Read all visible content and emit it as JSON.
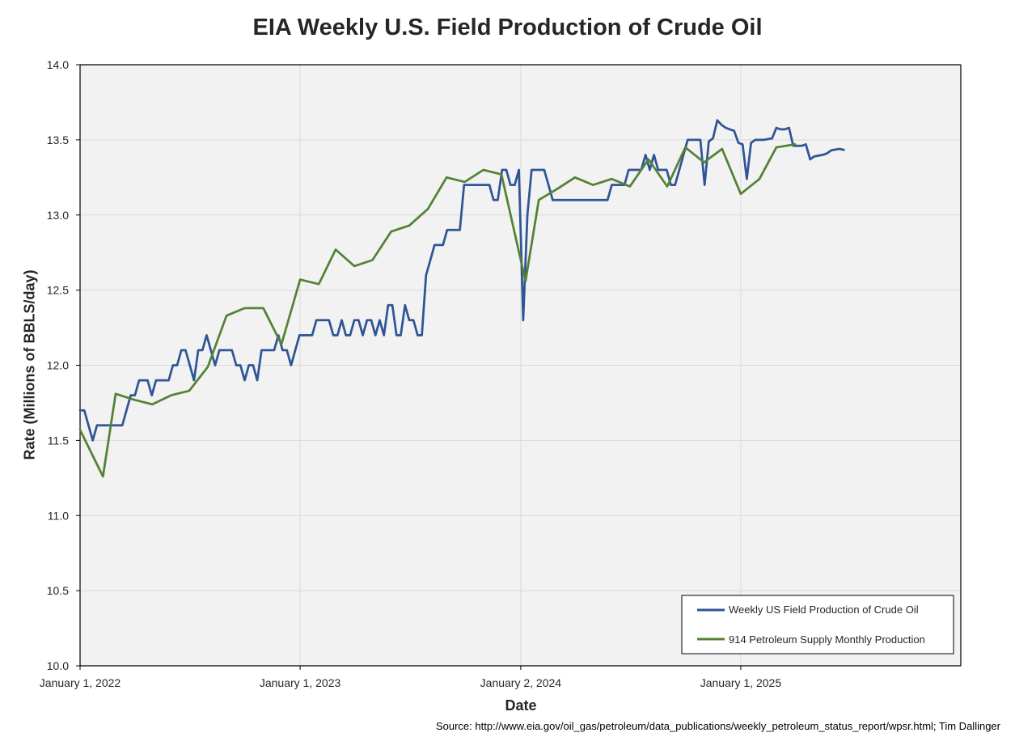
{
  "chart_data": {
    "type": "line",
    "title": "EIA Weekly U.S. Field Production of Crude Oil",
    "xlabel": "Date",
    "ylabel": "Rate (Millions of BBLS/day)",
    "xlim": [
      "2022-01-01",
      "2026-01-01"
    ],
    "ylim": [
      10.0,
      14.0
    ],
    "y_ticks": [
      "10.0",
      "10.5",
      "11.0",
      "11.5",
      "12.0",
      "12.5",
      "13.0",
      "13.5",
      "14.0"
    ],
    "x_ticks": [
      {
        "date": "2022-01-01",
        "label": "January 1, 2022"
      },
      {
        "date": "2023-01-01",
        "label": "January 1, 2023"
      },
      {
        "date": "2024-01-02",
        "label": "January 2, 2024"
      },
      {
        "date": "2025-01-01",
        "label": "January 1, 2025"
      }
    ],
    "grid": true,
    "legend_position": "bottom-right",
    "series": [
      {
        "name": "Weekly US Field Production of Crude Oil",
        "color": "#2f5597",
        "points": [
          [
            "2022-01-01",
            11.7
          ],
          [
            "2022-01-08",
            11.7
          ],
          [
            "2022-01-15",
            11.6
          ],
          [
            "2022-01-22",
            11.5
          ],
          [
            "2022-01-29",
            11.6
          ],
          [
            "2022-02-05",
            11.6
          ],
          [
            "2022-02-12",
            11.6
          ],
          [
            "2022-02-19",
            11.6
          ],
          [
            "2022-02-26",
            11.6
          ],
          [
            "2022-03-05",
            11.6
          ],
          [
            "2022-03-12",
            11.6
          ],
          [
            "2022-03-19",
            11.7
          ],
          [
            "2022-03-26",
            11.8
          ],
          [
            "2022-04-02",
            11.8
          ],
          [
            "2022-04-09",
            11.9
          ],
          [
            "2022-04-16",
            11.9
          ],
          [
            "2022-04-23",
            11.9
          ],
          [
            "2022-04-30",
            11.8
          ],
          [
            "2022-05-07",
            11.9
          ],
          [
            "2022-05-14",
            11.9
          ],
          [
            "2022-05-21",
            11.9
          ],
          [
            "2022-05-28",
            11.9
          ],
          [
            "2022-06-04",
            12.0
          ],
          [
            "2022-06-11",
            12.0
          ],
          [
            "2022-06-18",
            12.1
          ],
          [
            "2022-06-25",
            12.1
          ],
          [
            "2022-07-02",
            12.0
          ],
          [
            "2022-07-09",
            11.9
          ],
          [
            "2022-07-16",
            12.1
          ],
          [
            "2022-07-23",
            12.1
          ],
          [
            "2022-07-30",
            12.2
          ],
          [
            "2022-08-06",
            12.1
          ],
          [
            "2022-08-13",
            12.0
          ],
          [
            "2022-08-20",
            12.1
          ],
          [
            "2022-08-27",
            12.1
          ],
          [
            "2022-09-03",
            12.1
          ],
          [
            "2022-09-10",
            12.1
          ],
          [
            "2022-09-17",
            12.0
          ],
          [
            "2022-09-24",
            12.0
          ],
          [
            "2022-10-01",
            11.9
          ],
          [
            "2022-10-08",
            12.0
          ],
          [
            "2022-10-15",
            12.0
          ],
          [
            "2022-10-22",
            11.9
          ],
          [
            "2022-10-29",
            12.1
          ],
          [
            "2022-11-05",
            12.1
          ],
          [
            "2022-11-12",
            12.1
          ],
          [
            "2022-11-19",
            12.1
          ],
          [
            "2022-11-26",
            12.2
          ],
          [
            "2022-12-03",
            12.1
          ],
          [
            "2022-12-10",
            12.1
          ],
          [
            "2022-12-17",
            12.0
          ],
          [
            "2022-12-24",
            12.1
          ],
          [
            "2022-12-31",
            12.2
          ],
          [
            "2023-01-07",
            12.2
          ],
          [
            "2023-01-14",
            12.2
          ],
          [
            "2023-01-21",
            12.2
          ],
          [
            "2023-01-28",
            12.3
          ],
          [
            "2023-02-04",
            12.3
          ],
          [
            "2023-02-11",
            12.3
          ],
          [
            "2023-02-18",
            12.3
          ],
          [
            "2023-02-25",
            12.2
          ],
          [
            "2023-03-04",
            12.2
          ],
          [
            "2023-03-11",
            12.3
          ],
          [
            "2023-03-18",
            12.2
          ],
          [
            "2023-03-25",
            12.2
          ],
          [
            "2023-04-01",
            12.3
          ],
          [
            "2023-04-08",
            12.3
          ],
          [
            "2023-04-15",
            12.2
          ],
          [
            "2023-04-22",
            12.3
          ],
          [
            "2023-04-29",
            12.3
          ],
          [
            "2023-05-06",
            12.2
          ],
          [
            "2023-05-13",
            12.3
          ],
          [
            "2023-05-20",
            12.2
          ],
          [
            "2023-05-27",
            12.4
          ],
          [
            "2023-06-03",
            12.4
          ],
          [
            "2023-06-10",
            12.2
          ],
          [
            "2023-06-17",
            12.2
          ],
          [
            "2023-06-24",
            12.4
          ],
          [
            "2023-07-01",
            12.3
          ],
          [
            "2023-07-08",
            12.3
          ],
          [
            "2023-07-15",
            12.2
          ],
          [
            "2023-07-22",
            12.2
          ],
          [
            "2023-07-29",
            12.6
          ],
          [
            "2023-08-05",
            12.7
          ],
          [
            "2023-08-12",
            12.8
          ],
          [
            "2023-08-19",
            12.8
          ],
          [
            "2023-08-26",
            12.8
          ],
          [
            "2023-09-02",
            12.9
          ],
          [
            "2023-09-09",
            12.9
          ],
          [
            "2023-09-16",
            12.9
          ],
          [
            "2023-09-23",
            12.9
          ],
          [
            "2023-09-30",
            13.2
          ],
          [
            "2023-10-07",
            13.2
          ],
          [
            "2023-10-14",
            13.2
          ],
          [
            "2023-10-21",
            13.2
          ],
          [
            "2023-10-28",
            13.2
          ],
          [
            "2023-11-04",
            13.2
          ],
          [
            "2023-11-11",
            13.2
          ],
          [
            "2023-11-18",
            13.1
          ],
          [
            "2023-11-25",
            13.1
          ],
          [
            "2023-12-02",
            13.3
          ],
          [
            "2023-12-09",
            13.3
          ],
          [
            "2023-12-16",
            13.2
          ],
          [
            "2023-12-23",
            13.2
          ],
          [
            "2023-12-30",
            13.3
          ],
          [
            "2024-01-06",
            12.3
          ],
          [
            "2024-01-13",
            13.0
          ],
          [
            "2024-01-20",
            13.3
          ],
          [
            "2024-01-27",
            13.3
          ],
          [
            "2024-02-03",
            13.3
          ],
          [
            "2024-02-10",
            13.3
          ],
          [
            "2024-02-17",
            13.2
          ],
          [
            "2024-02-24",
            13.1
          ],
          [
            "2024-03-02",
            13.1
          ],
          [
            "2024-03-09",
            13.1
          ],
          [
            "2024-03-16",
            13.1
          ],
          [
            "2024-03-23",
            13.1
          ],
          [
            "2024-03-30",
            13.1
          ],
          [
            "2024-04-06",
            13.1
          ],
          [
            "2024-04-13",
            13.1
          ],
          [
            "2024-04-20",
            13.1
          ],
          [
            "2024-04-27",
            13.1
          ],
          [
            "2024-05-04",
            13.1
          ],
          [
            "2024-05-11",
            13.1
          ],
          [
            "2024-05-18",
            13.1
          ],
          [
            "2024-05-25",
            13.1
          ],
          [
            "2024-06-01",
            13.2
          ],
          [
            "2024-06-08",
            13.2
          ],
          [
            "2024-06-15",
            13.2
          ],
          [
            "2024-06-22",
            13.2
          ],
          [
            "2024-06-29",
            13.3
          ],
          [
            "2024-07-06",
            13.3
          ],
          [
            "2024-07-13",
            13.3
          ],
          [
            "2024-07-20",
            13.3
          ],
          [
            "2024-07-27",
            13.4
          ],
          [
            "2024-08-03",
            13.3
          ],
          [
            "2024-08-10",
            13.4
          ],
          [
            "2024-08-17",
            13.3
          ],
          [
            "2024-08-24",
            13.3
          ],
          [
            "2024-08-31",
            13.3
          ],
          [
            "2024-09-07",
            13.2
          ],
          [
            "2024-09-14",
            13.2
          ],
          [
            "2024-09-21",
            13.3
          ],
          [
            "2024-09-28",
            13.4
          ],
          [
            "2024-10-05",
            13.5
          ],
          [
            "2024-10-12",
            13.5
          ],
          [
            "2024-10-19",
            13.5
          ],
          [
            "2024-10-26",
            13.5
          ],
          [
            "2024-11-02",
            13.2
          ],
          [
            "2024-11-09",
            13.49
          ],
          [
            "2024-11-16",
            13.51
          ],
          [
            "2024-11-23",
            13.63
          ],
          [
            "2024-11-30",
            13.6
          ],
          [
            "2024-12-07",
            13.58
          ],
          [
            "2024-12-14",
            13.57
          ],
          [
            "2024-12-21",
            13.56
          ],
          [
            "2024-12-28",
            13.48
          ],
          [
            "2025-01-04",
            13.47
          ],
          [
            "2025-01-11",
            13.24
          ],
          [
            "2025-01-18",
            13.48
          ],
          [
            "2025-01-25",
            13.5
          ],
          [
            "2025-02-01",
            13.5
          ],
          [
            "2025-02-08",
            13.5
          ],
          [
            "2025-02-15",
            13.505
          ],
          [
            "2025-02-22",
            13.51
          ],
          [
            "2025-03-01",
            13.58
          ],
          [
            "2025-03-08",
            13.57
          ],
          [
            "2025-03-15",
            13.57
          ],
          [
            "2025-03-22",
            13.58
          ],
          [
            "2025-03-29",
            13.46
          ],
          [
            "2025-04-05",
            13.46
          ],
          [
            "2025-04-12",
            13.46
          ],
          [
            "2025-04-19",
            13.47
          ],
          [
            "2025-04-26",
            13.37
          ],
          [
            "2025-05-03",
            13.39
          ],
          [
            "2025-05-10",
            13.395
          ],
          [
            "2025-05-17",
            13.4
          ],
          [
            "2025-05-24",
            13.41
          ],
          [
            "2025-05-31",
            13.43
          ],
          [
            "2025-06-07",
            13.435
          ],
          [
            "2025-06-14",
            13.44
          ],
          [
            "2025-06-21",
            13.433
          ]
        ]
      },
      {
        "name": "914 Petroleum Supply Monthly Production",
        "color": "#548235",
        "points": [
          [
            "2022-01-01",
            11.57
          ],
          [
            "2022-02-08",
            11.26
          ],
          [
            "2022-03-01",
            11.81
          ],
          [
            "2022-04-01",
            11.77
          ],
          [
            "2022-05-01",
            11.74
          ],
          [
            "2022-06-01",
            11.8
          ],
          [
            "2022-07-01",
            11.83
          ],
          [
            "2022-08-01",
            11.99
          ],
          [
            "2022-09-01",
            12.33
          ],
          [
            "2022-10-01",
            12.38
          ],
          [
            "2022-11-01",
            12.38
          ],
          [
            "2022-12-01",
            12.14
          ],
          [
            "2023-01-01",
            12.57
          ],
          [
            "2023-02-01",
            12.54
          ],
          [
            "2023-03-01",
            12.77
          ],
          [
            "2023-04-01",
            12.66
          ],
          [
            "2023-05-01",
            12.7
          ],
          [
            "2023-06-01",
            12.89
          ],
          [
            "2023-07-01",
            12.93
          ],
          [
            "2023-08-01",
            13.04
          ],
          [
            "2023-09-01",
            13.25
          ],
          [
            "2023-10-01",
            13.22
          ],
          [
            "2023-11-01",
            13.3
          ],
          [
            "2023-12-01",
            13.27
          ],
          [
            "2024-01-10",
            12.56
          ],
          [
            "2024-02-01",
            13.1
          ],
          [
            "2024-03-01",
            13.17
          ],
          [
            "2024-04-01",
            13.25
          ],
          [
            "2024-05-01",
            13.2
          ],
          [
            "2024-06-01",
            13.24
          ],
          [
            "2024-07-01",
            13.19
          ],
          [
            "2024-08-01",
            13.37
          ],
          [
            "2024-09-01",
            13.19
          ],
          [
            "2024-10-01",
            13.45
          ],
          [
            "2024-11-01",
            13.35
          ],
          [
            "2024-12-01",
            13.44
          ],
          [
            "2025-01-01",
            13.14
          ],
          [
            "2025-02-01",
            13.24
          ],
          [
            "2025-03-01",
            13.45
          ],
          [
            "2025-04-01",
            13.47
          ]
        ]
      }
    ]
  },
  "source_note": "Source: http://www.eia.gov/oil_gas/petroleum/data_publications/weekly_petroleum_status_report/wpsr.html; Tim Dallinger"
}
